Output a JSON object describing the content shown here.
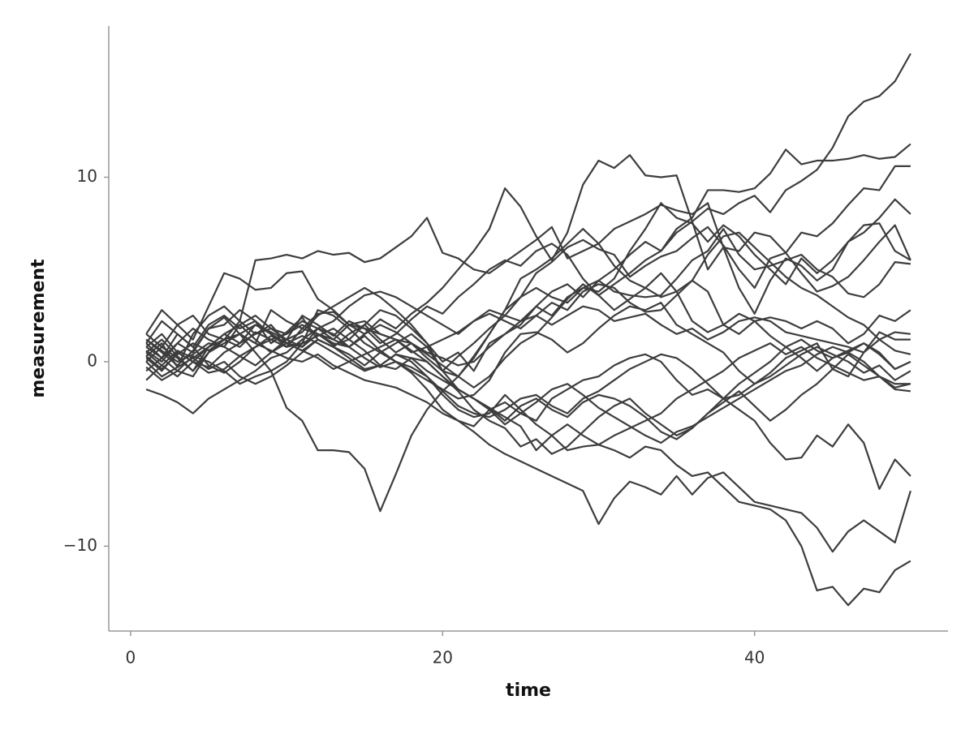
{
  "chart_data": {
    "type": "line",
    "x_label": "time",
    "y_label": "measurement",
    "color": "#3d3d3d",
    "x": [
      1,
      2,
      3,
      4,
      5,
      6,
      7,
      8,
      9,
      10,
      11,
      12,
      13,
      14,
      15,
      16,
      17,
      18,
      19,
      20,
      21,
      22,
      23,
      24,
      25,
      26,
      27,
      28,
      29,
      30,
      31,
      32,
      33,
      34,
      35,
      36,
      37,
      38,
      39,
      40,
      41,
      42,
      43,
      44,
      45,
      46,
      47,
      48,
      49,
      50
    ],
    "xlim": [
      -1.4,
      52.4
    ],
    "xticks": [
      0,
      20,
      40
    ],
    "ylim": [
      -14.6,
      18.2
    ],
    "yticks": [
      {
        "value": -10,
        "label": "−10"
      },
      0,
      10
    ],
    "series": [
      {
        "values": [
          0.5,
          1.2,
          0.3,
          -0.5,
          0.8,
          1.5,
          1.0,
          2.0,
          1.6,
          1.2,
          2.5,
          2.0,
          1.4,
          2.2,
          1.8,
          1.0,
          1.5,
          2.3,
          3.0,
          2.6,
          3.5,
          4.2,
          5.0,
          5.5,
          5.2,
          6.0,
          6.4,
          5.8,
          4.5,
          3.6,
          4.2,
          4.8,
          5.5,
          6.0,
          7.0,
          7.6,
          8.3,
          8.0,
          8.6,
          9.0,
          8.1,
          9.3,
          9.8,
          10.4,
          11.6,
          13.3,
          14.1,
          14.4,
          15.2,
          16.7
        ]
      },
      {
        "values": [
          1.0,
          0.2,
          1.5,
          0.8,
          2.0,
          2.5,
          1.8,
          2.2,
          1.0,
          1.6,
          2.4,
          1.2,
          0.8,
          1.5,
          2.0,
          1.2,
          0.5,
          1.0,
          0.2,
          -0.5,
          0.3,
          1.0,
          1.8,
          2.5,
          2.2,
          3.0,
          3.8,
          4.2,
          3.5,
          4.4,
          5.0,
          5.8,
          6.5,
          6.0,
          7.2,
          7.8,
          9.3,
          9.3,
          9.2,
          9.4,
          10.2,
          11.5,
          10.7,
          10.9,
          10.9,
          11.0,
          11.2,
          11.0,
          11.1,
          11.8
        ]
      },
      {
        "values": [
          1.5,
          2.8,
          2.0,
          1.2,
          3.0,
          4.8,
          4.5,
          3.9,
          4.0,
          4.8,
          4.9,
          3.4,
          2.8,
          2.0,
          1.5,
          2.3,
          1.8,
          2.6,
          3.2,
          4.0,
          5.0,
          6.0,
          7.2,
          9.4,
          8.4,
          6.8,
          5.5,
          7.0,
          9.6,
          10.9,
          10.5,
          11.2,
          10.1,
          10.0,
          10.1,
          7.6,
          5.0,
          6.2,
          4.0,
          2.6,
          4.4,
          5.6,
          5.2,
          4.4,
          5.0,
          6.5,
          7.4,
          7.5,
          6.0,
          5.5
        ]
      },
      {
        "values": [
          0.0,
          -0.8,
          -0.3,
          1.5,
          2.5,
          3.0,
          2.2,
          5.5,
          5.6,
          5.8,
          5.6,
          6.0,
          5.8,
          5.9,
          5.4,
          5.6,
          6.2,
          6.8,
          7.8,
          5.9,
          5.6,
          5.0,
          4.8,
          5.4,
          6.0,
          6.6,
          7.3,
          5.6,
          6.0,
          6.4,
          7.2,
          7.6,
          8.0,
          8.5,
          8.2,
          8.0,
          8.6,
          6.2,
          6.0,
          7.0,
          6.8,
          5.9,
          7.0,
          6.8,
          7.5,
          8.5,
          9.4,
          9.3,
          10.6,
          10.6
        ]
      },
      {
        "values": [
          1.2,
          0.5,
          -0.2,
          0.6,
          1.8,
          2.4,
          1.5,
          1.0,
          2.8,
          2.2,
          1.8,
          1.5,
          0.9,
          1.2,
          2.0,
          2.8,
          2.5,
          1.8,
          1.0,
          0.0,
          0.5,
          -0.5,
          1.0,
          1.5,
          2.0,
          3.0,
          2.5,
          3.5,
          4.0,
          3.8,
          4.5,
          6.0,
          7.2,
          8.6,
          7.8,
          7.5,
          6.5,
          7.4,
          6.8,
          5.8,
          5.0,
          4.2,
          5.6,
          4.8,
          5.5,
          6.5,
          7.0,
          7.8,
          8.8,
          8.0
        ]
      },
      {
        "values": [
          0.3,
          1.0,
          -0.3,
          0.2,
          0.8,
          1.5,
          2.0,
          1.2,
          0.5,
          1.2,
          1.6,
          2.5,
          3.0,
          3.5,
          4.0,
          3.5,
          2.8,
          2.0,
          1.0,
          -0.5,
          -0.8,
          0.2,
          1.5,
          2.8,
          3.5,
          4.8,
          5.4,
          6.2,
          6.6,
          6.1,
          5.8,
          4.6,
          5.2,
          5.7,
          6.0,
          6.7,
          7.3,
          6.3,
          5.0,
          4.0,
          5.6,
          5.9,
          4.8,
          3.8,
          4.1,
          4.6,
          5.5,
          6.5,
          7.4,
          5.5
        ]
      },
      {
        "values": [
          -0.5,
          0.2,
          1.0,
          0.5,
          1.8,
          2.0,
          2.8,
          2.2,
          1.5,
          0.8,
          1.8,
          2.6,
          2.7,
          2.0,
          2.2,
          1.5,
          1.2,
          0.5,
          0.8,
          1.2,
          1.6,
          2.2,
          2.8,
          2.5,
          3.5,
          4.0,
          3.5,
          3.2,
          4.0,
          4.4,
          3.8,
          3.6,
          3.5,
          3.6,
          4.5,
          5.5,
          6.0,
          7.2,
          5.8,
          5.0,
          5.2,
          5.5,
          5.8,
          5.0,
          4.6,
          3.7,
          3.5,
          4.2,
          5.4,
          5.3
        ]
      },
      {
        "values": [
          1.5,
          0.8,
          2.0,
          2.5,
          1.5,
          1.2,
          2.2,
          1.5,
          2.0,
          1.0,
          0.8,
          1.8,
          2.2,
          3.0,
          3.6,
          3.8,
          3.5,
          3.0,
          2.5,
          2.0,
          1.5,
          2.2,
          2.6,
          2.2,
          1.8,
          2.5,
          3.2,
          2.8,
          3.8,
          4.2,
          4.0,
          3.2,
          2.7,
          2.8,
          3.6,
          4.4,
          3.8,
          2.0,
          1.5,
          2.2,
          2.4,
          2.2,
          1.8,
          2.2,
          1.8,
          1.0,
          1.5,
          2.5,
          2.2,
          2.8
        ]
      },
      {
        "values": [
          0.8,
          1.5,
          0.5,
          0.0,
          -0.3,
          0.5,
          1.0,
          1.5,
          1.8,
          1.2,
          0.8,
          1.5,
          1.2,
          2.0,
          1.8,
          1.5,
          1.2,
          1.0,
          0.5,
          0.2,
          -0.2,
          0.0,
          0.8,
          1.5,
          2.2,
          2.5,
          2.0,
          2.5,
          3.0,
          2.8,
          2.2,
          2.4,
          2.6,
          2.0,
          1.5,
          1.8,
          1.2,
          1.6,
          2.2,
          2.4,
          2.2,
          1.6,
          1.4,
          1.2,
          1.0,
          0.8,
          0.5,
          1.2,
          1.6,
          1.5
        ]
      },
      {
        "values": [
          -0.3,
          -1.0,
          -0.5,
          0.3,
          0.0,
          -0.5,
          -1.2,
          -0.8,
          -0.5,
          0.0,
          1.0,
          2.8,
          2.5,
          1.8,
          1.0,
          0.5,
          0.0,
          -0.5,
          -1.0,
          -1.5,
          -2.0,
          -1.8,
          -1.0,
          0.5,
          1.5,
          1.6,
          1.2,
          0.5,
          1.0,
          1.8,
          2.5,
          3.0,
          2.8,
          3.2,
          2.0,
          1.5,
          1.0,
          0.5,
          -0.5,
          -1.2,
          -0.6,
          0.2,
          0.6,
          1.0,
          -0.4,
          -0.8,
          0.5,
          1.6,
          1.2,
          1.2
        ]
      },
      {
        "values": [
          0.8,
          0.2,
          -0.5,
          -0.8,
          0.5,
          1.2,
          0.8,
          1.6,
          1.2,
          0.8,
          1.0,
          1.4,
          1.8,
          1.2,
          0.6,
          -0.2,
          -0.4,
          0.2,
          0.0,
          -0.8,
          -1.5,
          -2.0,
          -2.5,
          -3.2,
          -2.4,
          -2.0,
          -2.6,
          -3.0,
          -2.2,
          -1.8,
          -2.0,
          -2.4,
          -3.0,
          -3.8,
          -4.2,
          -3.6,
          -2.8,
          -2.0,
          -1.2,
          -0.6,
          0.0,
          0.8,
          1.2,
          0.6,
          0.2,
          0.5,
          1.0,
          0.4,
          -0.4,
          0.0
        ]
      },
      {
        "values": [
          0.2,
          -0.5,
          0.5,
          0.0,
          -0.6,
          -0.4,
          0.3,
          0.8,
          1.2,
          1.5,
          2.0,
          1.5,
          1.0,
          0.8,
          1.4,
          0.6,
          0.0,
          -0.3,
          -0.8,
          -1.6,
          -2.4,
          -2.8,
          -3.0,
          -2.6,
          -2.0,
          -1.8,
          -2.4,
          -2.8,
          -2.0,
          -1.6,
          -1.0,
          -0.4,
          0.0,
          0.4,
          0.2,
          -0.4,
          -1.2,
          -2.0,
          -1.8,
          -1.2,
          -0.8,
          -0.2,
          0.4,
          0.8,
          0.4,
          0.0,
          -0.6,
          -0.2,
          -1.0,
          -0.5
        ]
      },
      {
        "values": [
          -1.0,
          -0.2,
          0.6,
          0.2,
          -0.4,
          0.0,
          -0.8,
          -1.2,
          -0.8,
          -0.2,
          0.5,
          1.2,
          0.8,
          0.2,
          -0.4,
          -0.2,
          0.4,
          0.0,
          -0.8,
          -1.8,
          -2.6,
          -3.0,
          -2.8,
          -1.8,
          -2.6,
          -3.4,
          -4.0,
          -4.8,
          -4.6,
          -4.5,
          -4.0,
          -3.6,
          -3.2,
          -2.8,
          -2.0,
          -1.5,
          -1.0,
          -0.5,
          0.2,
          0.6,
          1.0,
          0.4,
          0.8,
          0.2,
          -0.2,
          -0.6,
          -1.0,
          -0.8,
          -1.4,
          -1.2
        ]
      },
      {
        "values": [
          1.2,
          0.6,
          0.0,
          0.4,
          1.0,
          0.8,
          0.3,
          -0.2,
          0.5,
          1.0,
          1.4,
          1.0,
          0.5,
          0.0,
          -0.5,
          -0.2,
          0.4,
          0.2,
          -0.5,
          -1.0,
          -1.5,
          -2.0,
          -2.6,
          -3.4,
          -2.8,
          -2.2,
          -1.5,
          -1.2,
          -1.8,
          -2.5,
          -3.0,
          -3.5,
          -4.0,
          -4.4,
          -3.8,
          -3.5,
          -3.0,
          -2.5,
          -2.0,
          -1.5,
          -1.0,
          -0.5,
          -0.2,
          0.4,
          0.8,
          0.5,
          0.0,
          -0.8,
          -1.5,
          -1.6
        ]
      },
      {
        "values": [
          -1.5,
          -1.8,
          -2.2,
          -2.8,
          -2.0,
          -1.5,
          -1.0,
          -0.5,
          0.2,
          0.5,
          1.2,
          1.8,
          1.5,
          0.8,
          0.2,
          -0.3,
          0.0,
          -0.6,
          -1.5,
          -2.6,
          -3.2,
          -3.5,
          -2.6,
          -2.2,
          -2.8,
          -3.2,
          -2.0,
          -1.5,
          -1.0,
          -0.8,
          -0.2,
          0.2,
          0.4,
          0.0,
          -1.0,
          -1.8,
          -1.5,
          -2.0,
          -2.6,
          -3.2,
          -4.4,
          -5.3,
          -5.2,
          -4.0,
          -4.6,
          -3.4,
          -4.4,
          -6.9,
          -5.3,
          -6.2
        ]
      },
      {
        "values": [
          0.5,
          -0.2,
          -0.8,
          0.0,
          0.8,
          1.2,
          1.5,
          1.0,
          0.6,
          0.2,
          0.0,
          0.4,
          -0.2,
          -0.6,
          -1.0,
          -1.2,
          -1.4,
          -1.8,
          -2.2,
          -2.8,
          -3.2,
          -3.8,
          -4.5,
          -5.0,
          -5.4,
          -5.8,
          -6.2,
          -6.6,
          -7.0,
          -8.8,
          -7.4,
          -6.5,
          -6.8,
          -7.2,
          -6.2,
          -7.2,
          -6.3,
          -6.0,
          -6.8,
          -7.6,
          -7.8,
          -8.0,
          -8.2,
          -9.0,
          -10.3,
          -9.2,
          -8.6,
          -9.2,
          -9.8,
          -7.0
        ]
      },
      {
        "values": [
          0.0,
          0.8,
          0.2,
          -0.5,
          0.5,
          1.0,
          1.5,
          2.0,
          1.5,
          1.0,
          0.6,
          1.2,
          0.8,
          0.4,
          -0.2,
          0.5,
          1.0,
          1.5,
          0.8,
          -0.5,
          -1.5,
          -2.0,
          -2.5,
          -3.0,
          -3.5,
          -4.8,
          -4.0,
          -3.4,
          -4.0,
          -4.5,
          -4.8,
          -5.2,
          -4.6,
          -4.8,
          -5.6,
          -6.2,
          -6.0,
          -6.8,
          -7.6,
          -7.8,
          -8.0,
          -8.6,
          -10.0,
          -12.4,
          -12.2,
          -13.2,
          -12.3,
          -12.5,
          -11.3,
          -10.8
        ]
      },
      {
        "values": [
          0.3,
          -0.4,
          0.4,
          1.0,
          0.6,
          1.2,
          1.5,
          0.5,
          -0.5,
          -2.5,
          -3.2,
          -4.8,
          -4.8,
          -4.9,
          -5.8,
          -8.1,
          -6.1,
          -4.0,
          -2.6,
          -1.6,
          -0.8,
          0.3,
          1.5,
          2.8,
          4.5,
          5.0,
          5.6,
          6.4,
          7.2,
          6.4,
          5.2,
          4.4,
          4.0,
          3.5,
          3.8,
          4.4,
          5.8,
          6.8,
          7.0,
          6.2,
          5.4,
          4.6,
          4.0,
          3.6,
          3.0,
          2.4,
          2.0,
          1.2,
          0.6,
          0.4
        ]
      },
      {
        "values": [
          1.0,
          2.2,
          1.5,
          0.8,
          -0.2,
          -0.6,
          0.0,
          0.8,
          1.4,
          1.0,
          0.6,
          0.2,
          -0.4,
          0.0,
          0.4,
          0.8,
          1.2,
          0.6,
          0.0,
          -0.8,
          -1.6,
          -2.6,
          -3.2,
          -3.6,
          -4.6,
          -4.2,
          -5.0,
          -4.6,
          -3.8,
          -3.0,
          -2.4,
          -2.0,
          -2.8,
          -3.4,
          -4.0,
          -3.6,
          -2.8,
          -2.2,
          -1.6,
          -2.4,
          -3.2,
          -2.6,
          -1.8,
          -1.2,
          -0.4,
          0.4,
          -0.2,
          -0.8,
          -1.2,
          -1.2
        ]
      },
      {
        "values": [
          0.6,
          0.0,
          1.0,
          1.8,
          1.2,
          0.8,
          2.0,
          2.5,
          1.8,
          1.5,
          2.2,
          1.8,
          1.2,
          0.8,
          1.5,
          2.0,
          1.6,
          1.0,
          0.4,
          -0.2,
          -0.8,
          -1.4,
          -0.8,
          0.2,
          1.0,
          1.5,
          2.4,
          3.4,
          4.2,
          3.6,
          2.8,
          3.4,
          4.0,
          4.8,
          3.8,
          2.2,
          1.6,
          2.0,
          2.6,
          2.2,
          1.4,
          0.8,
          0.2,
          -0.5,
          0.2,
          0.6,
          1.0,
          0.5,
          -0.4,
          0.0
        ]
      }
    ]
  }
}
